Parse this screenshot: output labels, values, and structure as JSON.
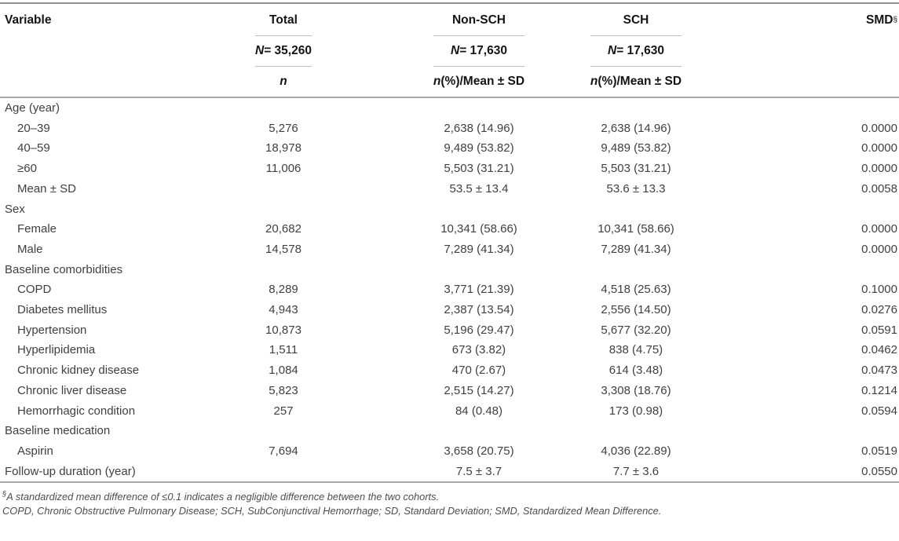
{
  "header": {
    "variable_label": "Variable",
    "groups": [
      {
        "label": "Total",
        "n_prefix": "N",
        "n_value": " = 35,260",
        "sub_prefix": "n",
        "sub_rest": ""
      },
      {
        "label": "Non-SCH",
        "n_prefix": "N",
        "n_value": " = 17,630",
        "sub_prefix": "n",
        "sub_rest": " (%)/Mean ± SD"
      },
      {
        "label": "SCH",
        "n_prefix": "N",
        "n_value": " = 17,630",
        "sub_prefix": "n",
        "sub_rest": " (%)/Mean ± SD"
      }
    ],
    "smd_label": "SMD",
    "smd_superscript": "§"
  },
  "rows": [
    {
      "label": "Age (year)",
      "indent": false,
      "total": "",
      "non_sch": "",
      "sch": "",
      "smd": ""
    },
    {
      "label": "20–39",
      "indent": true,
      "total": "5,276",
      "non_sch": "2,638 (14.96)",
      "sch": "2,638 (14.96)",
      "smd": "0.0000"
    },
    {
      "label": "40–59",
      "indent": true,
      "total": "18,978",
      "non_sch": "9,489 (53.82)",
      "sch": "9,489 (53.82)",
      "smd": "0.0000"
    },
    {
      "label": "≥60",
      "indent": true,
      "total": "11,006",
      "non_sch": "5,503 (31.21)",
      "sch": "5,503 (31.21)",
      "smd": "0.0000"
    },
    {
      "label": "Mean ± SD",
      "indent": true,
      "total": "",
      "non_sch": "53.5 ± 13.4",
      "sch": "53.6 ± 13.3",
      "smd": "0.0058"
    },
    {
      "label": "Sex",
      "indent": false,
      "total": "",
      "non_sch": "",
      "sch": "",
      "smd": ""
    },
    {
      "label": "Female",
      "indent": true,
      "total": "20,682",
      "non_sch": "10,341 (58.66)",
      "sch": "10,341 (58.66)",
      "smd": "0.0000"
    },
    {
      "label": "Male",
      "indent": true,
      "total": "14,578",
      "non_sch": "7,289 (41.34)",
      "sch": "7,289 (41.34)",
      "smd": "0.0000"
    },
    {
      "label": "Baseline comorbidities",
      "indent": false,
      "total": "",
      "non_sch": "",
      "sch": "",
      "smd": ""
    },
    {
      "label": "COPD",
      "indent": true,
      "total": "8,289",
      "non_sch": "3,771 (21.39)",
      "sch": "4,518 (25.63)",
      "smd": "0.1000"
    },
    {
      "label": "Diabetes mellitus",
      "indent": true,
      "total": "4,943",
      "non_sch": "2,387 (13.54)",
      "sch": "2,556 (14.50)",
      "smd": "0.0276"
    },
    {
      "label": "Hypertension",
      "indent": true,
      "total": "10,873",
      "non_sch": "5,196 (29.47)",
      "sch": "5,677 (32.20)",
      "smd": "0.0591"
    },
    {
      "label": "Hyperlipidemia",
      "indent": true,
      "total": "1,511",
      "non_sch": "673 (3.82)",
      "sch": "838 (4.75)",
      "smd": "0.0462"
    },
    {
      "label": "Chronic kidney disease",
      "indent": true,
      "total": "1,084",
      "non_sch": "470 (2.67)",
      "sch": "614 (3.48)",
      "smd": "0.0473"
    },
    {
      "label": "Chronic liver disease",
      "indent": true,
      "total": "5,823",
      "non_sch": "2,515 (14.27)",
      "sch": "3,308 (18.76)",
      "smd": "0.1214"
    },
    {
      "label": "Hemorrhagic condition",
      "indent": true,
      "total": "257",
      "non_sch": "84 (0.48)",
      "sch": "173 (0.98)",
      "smd": "0.0594"
    },
    {
      "label": "Baseline medication",
      "indent": false,
      "total": "",
      "non_sch": "",
      "sch": "",
      "smd": ""
    },
    {
      "label": "Aspirin",
      "indent": true,
      "total": "7,694",
      "non_sch": "3,658 (20.75)",
      "sch": "4,036 (22.89)",
      "smd": "0.0519"
    },
    {
      "label": "Follow-up duration (year)",
      "indent": false,
      "total": "",
      "non_sch": "7.5 ± 3.7",
      "sch": "7.7 ± 3.6",
      "smd": "0.0550"
    }
  ],
  "footnotes": {
    "line1_sup": "§",
    "line1": "A standardized mean difference of ≤0.1 indicates a negligible difference between the two cohorts.",
    "line2": "COPD, Chronic Obstructive Pulmonary Disease; SCH, SubConjunctival Hemorrhage; SD, Standard Deviation; SMD, Standardized Mean Difference."
  }
}
